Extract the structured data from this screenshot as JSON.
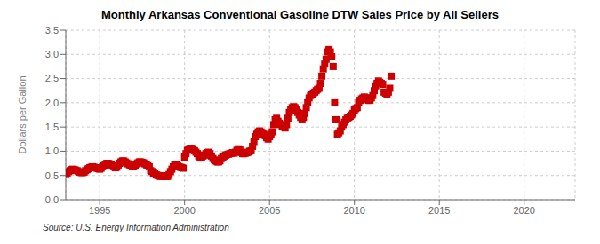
{
  "chart_data": {
    "type": "scatter",
    "title": "Monthly Arkansas Conventional Gasoline DTW Sales Price by All Sellers",
    "y_label": "Dollars per Gallon",
    "source": "Source: U.S. Energy Information Administration",
    "xlim": [
      1993.0,
      2023.0
    ],
    "ylim": [
      0.0,
      3.5
    ],
    "xticks": [
      1995,
      2000,
      2005,
      2010,
      2015,
      2020
    ],
    "yticks": [
      {
        "value": 0.0,
        "label": "0.0"
      },
      0.5,
      {
        "value": 1.0,
        "label": "1.0"
      },
      1.5,
      {
        "value": 2.0,
        "label": "2.0"
      },
      2.5,
      {
        "value": 3.0,
        "label": "3.0"
      },
      3.5
    ],
    "grid": true,
    "color": "#cc0000",
    "marker": "square",
    "x": [
      1993.0,
      1993.083,
      1993.167,
      1993.25,
      1993.333,
      1993.417,
      1993.5,
      1993.583,
      1993.667,
      1993.75,
      1993.833,
      1993.917,
      1994.0,
      1994.083,
      1994.167,
      1994.25,
      1994.333,
      1994.417,
      1994.5,
      1994.583,
      1994.667,
      1994.75,
      1994.833,
      1994.917,
      1995.0,
      1995.083,
      1995.167,
      1995.25,
      1995.333,
      1995.417,
      1995.5,
      1995.583,
      1995.667,
      1995.75,
      1995.833,
      1995.917,
      1996.0,
      1996.083,
      1996.167,
      1996.25,
      1996.333,
      1996.417,
      1996.5,
      1996.583,
      1996.667,
      1996.75,
      1996.833,
      1996.917,
      1997.0,
      1997.083,
      1997.167,
      1997.25,
      1997.333,
      1997.417,
      1997.5,
      1997.583,
      1997.667,
      1997.75,
      1997.833,
      1997.917,
      1998.0,
      1998.083,
      1998.167,
      1998.25,
      1998.333,
      1998.417,
      1998.5,
      1998.583,
      1998.667,
      1998.75,
      1998.833,
      1998.917,
      1999.0,
      1999.083,
      1999.167,
      1999.25,
      1999.333,
      1999.417,
      1999.5,
      1999.583,
      1999.667,
      1999.75,
      1999.833,
      1999.917,
      2000.0,
      2000.083,
      2000.167,
      2000.25,
      2000.333,
      2000.417,
      2000.5,
      2000.583,
      2000.667,
      2000.75,
      2000.833,
      2000.917,
      2001.0,
      2001.083,
      2001.167,
      2001.25,
      2001.333,
      2001.417,
      2001.5,
      2001.583,
      2001.667,
      2001.75,
      2001.833,
      2001.917,
      2002.0,
      2002.083,
      2002.167,
      2002.25,
      2002.333,
      2002.417,
      2002.5,
      2002.583,
      2002.667,
      2002.75,
      2002.833,
      2002.917,
      2003.0,
      2003.083,
      2003.167,
      2003.25,
      2003.333,
      2003.417,
      2003.5,
      2003.583,
      2003.667,
      2003.75,
      2003.833,
      2003.917,
      2004.0,
      2004.083,
      2004.167,
      2004.25,
      2004.333,
      2004.417,
      2004.5,
      2004.583,
      2004.667,
      2004.75,
      2004.833,
      2004.917,
      2005.0,
      2005.083,
      2005.167,
      2005.25,
      2005.333,
      2005.417,
      2005.5,
      2005.583,
      2005.667,
      2005.75,
      2005.833,
      2005.917,
      2006.0,
      2006.083,
      2006.167,
      2006.25,
      2006.333,
      2006.417,
      2006.5,
      2006.583,
      2006.667,
      2006.75,
      2006.833,
      2006.917,
      2007.0,
      2007.083,
      2007.167,
      2007.25,
      2007.333,
      2007.417,
      2007.5,
      2007.583,
      2007.667,
      2007.75,
      2007.833,
      2007.917,
      2008.0,
      2008.083,
      2008.167,
      2008.25,
      2008.333,
      2008.417,
      2008.5,
      2008.583,
      2008.667,
      2008.75,
      2008.833,
      2008.917,
      2009.0,
      2009.083,
      2009.167,
      2009.25,
      2009.333,
      2009.417,
      2009.5,
      2009.583,
      2009.667,
      2009.75,
      2009.833,
      2009.917,
      2010.0,
      2010.083,
      2010.167,
      2010.25,
      2010.333,
      2010.417,
      2010.5,
      2010.583,
      2010.667,
      2010.75,
      2010.833,
      2010.917,
      2011.0,
      2011.083,
      2011.167,
      2011.25,
      2011.333,
      2011.417,
      2011.5,
      2011.583,
      2011.667,
      2011.75,
      2011.833,
      2011.917,
      2012.0,
      2012.083,
      2012.167
    ],
    "values": [
      0.52,
      0.55,
      0.58,
      0.6,
      0.62,
      0.63,
      0.62,
      0.61,
      0.6,
      0.58,
      0.57,
      0.56,
      0.56,
      0.57,
      0.6,
      0.62,
      0.64,
      0.66,
      0.67,
      0.68,
      0.67,
      0.66,
      0.65,
      0.64,
      0.63,
      0.65,
      0.68,
      0.7,
      0.73,
      0.75,
      0.75,
      0.74,
      0.72,
      0.7,
      0.68,
      0.66,
      0.67,
      0.7,
      0.75,
      0.78,
      0.8,
      0.8,
      0.78,
      0.76,
      0.74,
      0.72,
      0.7,
      0.68,
      0.68,
      0.7,
      0.74,
      0.76,
      0.78,
      0.78,
      0.77,
      0.76,
      0.74,
      0.72,
      0.7,
      0.68,
      0.6,
      0.58,
      0.55,
      0.53,
      0.51,
      0.5,
      0.49,
      0.48,
      0.48,
      0.49,
      0.49,
      0.48,
      0.48,
      0.52,
      0.58,
      0.63,
      0.68,
      0.72,
      0.72,
      0.7,
      0.68,
      0.67,
      0.66,
      0.65,
      0.88,
      0.95,
      1.02,
      1.05,
      1.06,
      1.06,
      1.04,
      1.01,
      0.98,
      0.95,
      0.9,
      0.86,
      0.88,
      0.9,
      0.92,
      0.95,
      0.97,
      0.98,
      0.95,
      0.9,
      0.85,
      0.82,
      0.8,
      0.78,
      0.78,
      0.8,
      0.85,
      0.88,
      0.9,
      0.92,
      0.93,
      0.94,
      0.95,
      0.96,
      0.97,
      0.96,
      0.98,
      1.02,
      1.05,
      1.03,
      0.98,
      0.95,
      0.95,
      0.96,
      0.97,
      0.98,
      1.0,
      1.01,
      1.1,
      1.2,
      1.3,
      1.35,
      1.4,
      1.42,
      1.4,
      1.38,
      1.35,
      1.32,
      1.28,
      1.25,
      1.3,
      1.35,
      1.4,
      1.55,
      1.65,
      1.68,
      1.62,
      1.58,
      1.55,
      1.52,
      1.5,
      1.48,
      1.55,
      1.68,
      1.8,
      1.85,
      1.9,
      1.92,
      1.9,
      1.85,
      1.8,
      1.75,
      1.7,
      1.65,
      1.7,
      1.78,
      1.9,
      2.0,
      2.1,
      2.15,
      2.18,
      2.2,
      2.22,
      2.25,
      2.28,
      2.3,
      2.4,
      2.55,
      2.7,
      2.8,
      2.9,
      3.05,
      3.1,
      3.05,
      2.95,
      2.75,
      2.0,
      1.65,
      1.35,
      1.38,
      1.42,
      1.5,
      1.55,
      1.6,
      1.65,
      1.68,
      1.7,
      1.72,
      1.75,
      1.78,
      1.85,
      1.88,
      1.9,
      2.0,
      2.05,
      2.08,
      2.1,
      2.12,
      2.1,
      2.08,
      2.05,
      2.05,
      2.1,
      2.15,
      2.25,
      2.35,
      2.4,
      2.45,
      2.42,
      2.4,
      2.38,
      2.22,
      2.2,
      2.18,
      2.22,
      2.3,
      2.55
    ]
  }
}
